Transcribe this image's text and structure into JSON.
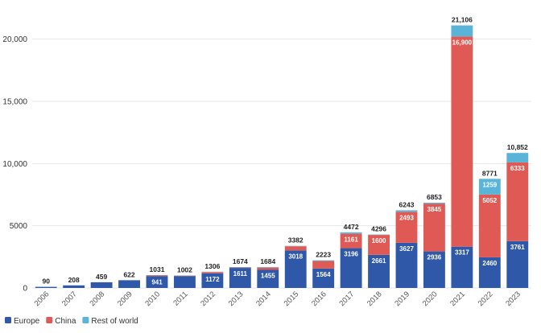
{
  "chart_data": {
    "type": "bar",
    "stacked": true,
    "categories": [
      "2006",
      "2007",
      "2008",
      "2009",
      "2010",
      "2011",
      "2012",
      "2013",
      "2014",
      "2015",
      "2016",
      "2017",
      "2018",
      "2019",
      "2020",
      "2021",
      "2022",
      "2023"
    ],
    "series": [
      {
        "name": "Europe",
        "color": "#2f58a8",
        "values": [
          90,
          208,
          459,
          622,
          941,
          940,
          1172,
          1611,
          1455,
          3018,
          1564,
          3196,
          2661,
          3627,
          2936,
          3317,
          2460,
          3761
        ]
      },
      {
        "name": "China",
        "color": "#e05a55",
        "values": [
          0,
          0,
          0,
          0,
          80,
          50,
          100,
          50,
          180,
          330,
          600,
          1161,
          1600,
          2493,
          3845,
          16900,
          5052,
          6333
        ]
      },
      {
        "name": "Rest of world",
        "color": "#5ab4d8",
        "values": [
          0,
          0,
          0,
          0,
          10,
          12,
          34,
          13,
          49,
          34,
          59,
          115,
          35,
          123,
          72,
          889,
          1259,
          758
        ]
      }
    ],
    "totals": [
      "90",
      "208",
      "459",
      "622",
      "1031",
      "1002",
      "1306",
      "1674",
      "1684",
      "3382",
      "2223",
      "4472",
      "4296",
      "6243",
      "6853",
      "21,106",
      "8771",
      "10,852"
    ],
    "segment_labels": {
      "Europe": [
        "",
        "",
        "",
        "",
        "941",
        "",
        "1172",
        "1611",
        "1455",
        "3018",
        "1564",
        "3196",
        "2661",
        "3627",
        "2936",
        "3317",
        "2460",
        "3761"
      ],
      "China": [
        "",
        "",
        "",
        "",
        "",
        "",
        "",
        "",
        "",
        "",
        "",
        "1161",
        "1600",
        "2493",
        "3845",
        "16,900",
        "5052",
        "6333"
      ],
      "Rest of world": [
        "",
        "",
        "",
        "",
        "",
        "",
        "",
        "",
        "",
        "",
        "",
        "",
        "",
        "",
        "",
        "",
        "1259",
        ""
      ]
    },
    "y_ticks": [
      0,
      5000,
      10000,
      15000,
      20000
    ],
    "y_tick_labels": [
      "0",
      "5000",
      "10,000",
      "15,000",
      "20,000"
    ],
    "ylim": [
      0,
      22500
    ],
    "legend_position": "bottom-left",
    "grid": true
  }
}
